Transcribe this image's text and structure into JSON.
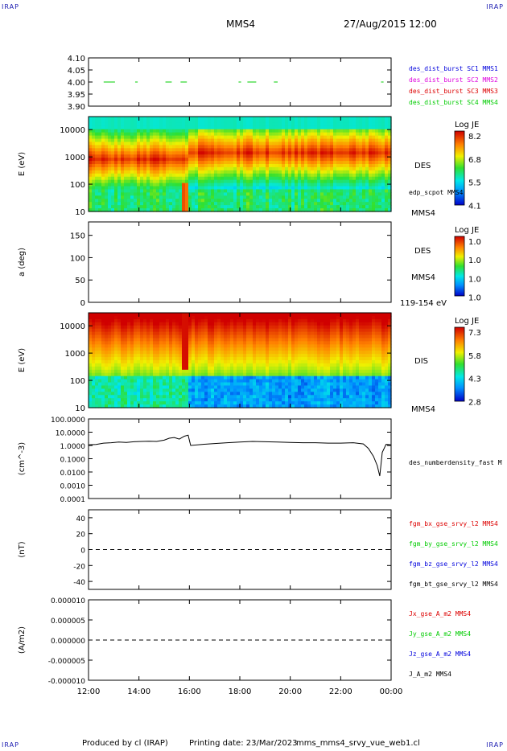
{
  "header": {
    "logo_text": "IRAP",
    "spacecraft": "MMS4",
    "datetime": "27/Aug/2015 12:00"
  },
  "footer": {
    "produced_by": "Produced by cl (IRAP)",
    "printing_date": "Printing date: 23/Mar/2023",
    "script_name": "mms_mms4_srvy_vue_web1.cl"
  },
  "colors": {
    "sc1": "#0000dd",
    "sc2": "#dd00dd",
    "sc3": "#dd0000",
    "sc4": "#00cc00",
    "bx": "#dd0000",
    "by": "#00cc00",
    "bz": "#0000dd",
    "bt": "#000000"
  },
  "x_axis": {
    "range_hours": [
      12,
      24
    ],
    "tick_labels": [
      "12:00",
      "14:00",
      "16:00",
      "18:00",
      "20:00",
      "22:00",
      "00:00"
    ]
  },
  "chart_data": [
    {
      "id": "burst_flags",
      "type": "scatter",
      "ylim": [
        3.9,
        4.1
      ],
      "yticks": [
        "4.10",
        "4.05",
        "4.00",
        "3.95",
        "3.90"
      ],
      "legend": [
        {
          "label": "des_dist_burst SC1 MMS1",
          "color": "#0000dd"
        },
        {
          "label": "des_dist_burst SC2 MMS2",
          "color": "#dd00dd"
        },
        {
          "label": "des_dist_burst SC3 MMS3",
          "color": "#dd0000"
        },
        {
          "label": "des_dist_burst SC4 MMS4",
          "color": "#00cc00"
        }
      ],
      "series": [
        {
          "color": "#00cc00",
          "y": 4.0,
          "intervals": [
            [
              12.6,
              13.05
            ],
            [
              13.85,
              13.95
            ],
            [
              15.05,
              15.3
            ],
            [
              15.65,
              15.9
            ],
            [
              17.95,
              18.05
            ],
            [
              18.3,
              18.65
            ],
            [
              19.35,
              19.5
            ],
            [
              23.6,
              23.7
            ]
          ]
        }
      ]
    },
    {
      "id": "des_energy_spectrogram",
      "type": "heatmap",
      "ylabel": "E (eV)",
      "yscale": "log",
      "ylim": [
        10,
        30000
      ],
      "yticks": [
        "10000",
        "1000",
        "100",
        "10"
      ],
      "instrument": "DES",
      "spacecraft": "MMS4",
      "overlay_label": "edp_scpot MMS4",
      "colorbar": {
        "title": "Log JE",
        "ticks": [
          "8.2",
          "6.8",
          "5.5",
          "4.1"
        ],
        "range": [
          4.1,
          8.5
        ]
      }
    },
    {
      "id": "des_pitch_angle",
      "type": "heatmap",
      "ylabel": "a (deg)",
      "ylim": [
        0,
        180
      ],
      "yticks": [
        "150",
        "100",
        "50",
        "0"
      ],
      "instrument": "DES",
      "spacecraft": "MMS4",
      "energy_range": "119-154 eV",
      "colorbar": {
        "title": "Log JE",
        "ticks": [
          "1.0",
          "1.0",
          "1.0",
          "1.0"
        ]
      }
    },
    {
      "id": "dis_energy_spectrogram",
      "type": "heatmap",
      "ylabel": "E (eV)",
      "yscale": "log",
      "ylim": [
        10,
        30000
      ],
      "yticks": [
        "10000",
        "1000",
        "100",
        "10"
      ],
      "instrument": "DIS",
      "spacecraft": "MMS4",
      "colorbar": {
        "title": "Log JE",
        "ticks": [
          "7.3",
          "5.8",
          "4.3",
          "2.8"
        ],
        "range": [
          2.8,
          7.6
        ]
      }
    },
    {
      "id": "density",
      "type": "line",
      "ylabel": "(cm^-3)",
      "yscale": "log",
      "ylim": [
        0.0001,
        100
      ],
      "yticks": [
        "100.0000",
        "10.0000",
        "1.0000",
        "0.1000",
        "0.0100",
        "0.0010",
        "0.0001"
      ],
      "legend": [
        {
          "label": "des_numberdensity_fast M",
          "color": "#000000"
        }
      ],
      "x": [
        12.0,
        12.3,
        12.6,
        12.9,
        13.2,
        13.5,
        13.8,
        14.1,
        14.4,
        14.7,
        15.0,
        15.2,
        15.4,
        15.6,
        15.8,
        15.95,
        16.05,
        16.5,
        17.0,
        17.5,
        18.0,
        18.5,
        19.0,
        19.5,
        20.0,
        20.5,
        21.0,
        21.5,
        22.0,
        22.5,
        22.9,
        23.1,
        23.3,
        23.45,
        23.55,
        23.65,
        23.8,
        24.0
      ],
      "values": [
        1.1,
        1.2,
        1.5,
        1.6,
        1.8,
        1.7,
        1.9,
        2.0,
        2.1,
        2.0,
        2.5,
        3.5,
        4.0,
        3.0,
        5.0,
        6.0,
        1.0,
        1.2,
        1.4,
        1.6,
        1.8,
        2.0,
        1.9,
        1.8,
        1.7,
        1.6,
        1.6,
        1.5,
        1.5,
        1.6,
        1.3,
        0.6,
        0.15,
        0.03,
        0.005,
        0.3,
        1.2,
        1.1
      ]
    },
    {
      "id": "magnetic_field",
      "type": "line",
      "ylabel": "(nT)",
      "ylim": [
        -50,
        50
      ],
      "yticks": [
        "40",
        "20",
        "0",
        "-20",
        "-40"
      ],
      "zero_line": true,
      "legend": [
        {
          "label": "fgm_bx_gse_srvy_l2 MMS4",
          "color": "#dd0000"
        },
        {
          "label": "fgm_by_gse_srvy_l2 MMS4",
          "color": "#00cc00"
        },
        {
          "label": "fgm_bz_gse_srvy_l2 MMS4",
          "color": "#0000dd"
        },
        {
          "label": "fgm_bt_gse_srvy_l2 MMS4",
          "color": "#000000"
        }
      ]
    },
    {
      "id": "current_density",
      "type": "line",
      "ylabel": "(A/m2)",
      "ylim": [
        -1e-05,
        1e-05
      ],
      "yticks": [
        "0.000010",
        "0.000005",
        "0.000000",
        "-0.000005",
        "-0.000010"
      ],
      "zero_line": true,
      "legend": [
        {
          "label": "Jx_gse_A_m2 MMS4",
          "color": "#dd0000"
        },
        {
          "label": "Jy_gse_A_m2 MMS4",
          "color": "#00cc00"
        },
        {
          "label": "Jz_gse_A_m2 MMS4",
          "color": "#0000dd"
        },
        {
          "label": "J_A_m2 MMS4",
          "color": "#000000"
        }
      ]
    }
  ]
}
